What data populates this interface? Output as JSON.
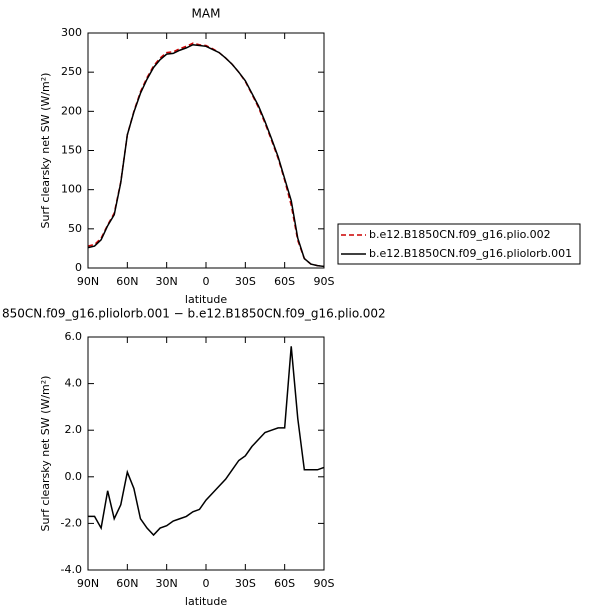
{
  "chart_data": [
    {
      "type": "line",
      "title": "MAM",
      "xlabel": "latitude",
      "ylabel": "Surf clearsky net SW (W/m²)",
      "x": [
        90,
        85,
        80,
        75,
        70,
        65,
        60,
        55,
        50,
        45,
        40,
        35,
        30,
        25,
        20,
        15,
        10,
        5,
        0,
        -5,
        -10,
        -15,
        -20,
        -25,
        -30,
        -35,
        -40,
        -45,
        -50,
        -55,
        -60,
        -65,
        -70,
        -75,
        -80,
        -85,
        -90
      ],
      "series": [
        {
          "name": "b.e12.B1850CN.f09_g16.plio.002",
          "color": "#cc0000",
          "dash": true,
          "values": [
            28,
            30,
            38,
            55,
            70,
            110,
            170,
            200,
            225,
            243,
            258,
            268,
            275,
            276,
            280,
            283,
            287,
            285,
            284,
            280,
            275,
            268,
            260,
            250,
            238,
            222,
            205,
            185,
            163,
            140,
            112,
            80,
            35,
            12,
            5,
            3,
            2
          ]
        },
        {
          "name": "b.e12.B1850CN.f09_g16.pliolorb.001",
          "color": "#000000",
          "dash": false,
          "values": [
            26,
            28,
            36,
            54,
            68,
            109,
            170,
            199,
            223,
            241,
            256,
            266,
            273,
            274,
            278,
            281,
            285,
            284,
            283,
            279,
            275,
            268,
            260,
            250,
            239,
            223,
            207,
            187,
            165,
            142,
            114,
            86,
            38,
            12,
            5,
            3,
            2
          ]
        }
      ],
      "xlim": [
        90,
        -90
      ],
      "xticks": [
        {
          "value": 90,
          "label": "90N"
        },
        {
          "value": 60,
          "label": "60N"
        },
        {
          "value": 30,
          "label": "30N"
        },
        0,
        {
          "value": -30,
          "label": "30S"
        },
        {
          "value": -60,
          "label": "60S"
        },
        {
          "value": -90,
          "label": "90S"
        }
      ],
      "ylim": [
        0,
        300
      ],
      "yticks": [
        0,
        50,
        100,
        150,
        200,
        250,
        300
      ],
      "legend": "right"
    },
    {
      "type": "line",
      "title": "850CN.f09_g16.pliolorb.001 − b.e12.B1850CN.f09_g16.plio.002",
      "xlabel": "latitude",
      "ylabel": "Surf clearsky net SW (W/m²)",
      "x": [
        90,
        85,
        80,
        75,
        70,
        65,
        60,
        55,
        50,
        45,
        40,
        35,
        30,
        25,
        20,
        15,
        10,
        5,
        0,
        -5,
        -10,
        -15,
        -20,
        -25,
        -30,
        -35,
        -40,
        -45,
        -50,
        -55,
        -60,
        -65,
        -70,
        -75,
        -80,
        -85,
        -90
      ],
      "values": [
        -1.7,
        -1.7,
        -2.2,
        -0.6,
        -1.8,
        -1.2,
        0.2,
        -0.5,
        -1.8,
        -2.2,
        -2.5,
        -2.2,
        -2.1,
        -1.9,
        -1.8,
        -1.7,
        -1.5,
        -1.4,
        -1.0,
        -0.7,
        -0.4,
        -0.1,
        0.3,
        0.7,
        0.9,
        1.3,
        1.6,
        1.9,
        2.0,
        2.1,
        2.1,
        5.6,
        2.5,
        0.3,
        0.3,
        0.3,
        0.4
      ],
      "color": "#000000",
      "xlim": [
        90,
        -90
      ],
      "xticks": [
        {
          "value": 90,
          "label": "90N"
        },
        {
          "value": 60,
          "label": "60N"
        },
        {
          "value": 30,
          "label": "30N"
        },
        0,
        {
          "value": -30,
          "label": "30S"
        },
        {
          "value": -60,
          "label": "60S"
        },
        {
          "value": -90,
          "label": "90S"
        }
      ],
      "ylim": [
        -4,
        6
      ],
      "yticks": [
        {
          "value": -4,
          "label": "-4.0"
        },
        {
          "value": -2,
          "label": "-2.0"
        },
        {
          "value": 0,
          "label": "0.0"
        },
        {
          "value": 2,
          "label": "2.0"
        },
        {
          "value": 4,
          "label": "4.0"
        },
        {
          "value": 6,
          "label": "6.0"
        }
      ]
    }
  ]
}
